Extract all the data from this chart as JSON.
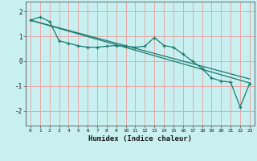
{
  "xlabel": "Humidex (Indice chaleur)",
  "bg_color": "#c8f0f0",
  "grid_color": "#e8a8a8",
  "line_color": "#1a7a6e",
  "xlim": [
    -0.5,
    23.5
  ],
  "ylim": [
    -2.6,
    2.4
  ],
  "yticks": [
    -2,
    -1,
    0,
    1,
    2
  ],
  "xticks": [
    0,
    1,
    2,
    3,
    4,
    5,
    6,
    7,
    8,
    9,
    10,
    11,
    12,
    13,
    14,
    15,
    16,
    17,
    18,
    19,
    20,
    21,
    22,
    23
  ],
  "series1_x": [
    0,
    1,
    2,
    3,
    4,
    5,
    6,
    7,
    8,
    9,
    10,
    11,
    12,
    13,
    14,
    15,
    16,
    17,
    18,
    19,
    20,
    21,
    22,
    23
  ],
  "series1_y": [
    1.65,
    1.78,
    1.6,
    0.82,
    0.72,
    0.62,
    0.56,
    0.56,
    0.6,
    0.63,
    0.6,
    0.56,
    0.6,
    0.95,
    0.63,
    0.56,
    0.28,
    0.0,
    -0.3,
    -0.68,
    -0.8,
    -0.85,
    -1.85,
    -0.9
  ],
  "series2_x": [
    0,
    23
  ],
  "series2_y": [
    1.65,
    -0.88
  ],
  "series3_x": [
    0,
    23
  ],
  "series3_y": [
    1.65,
    -0.72
  ]
}
